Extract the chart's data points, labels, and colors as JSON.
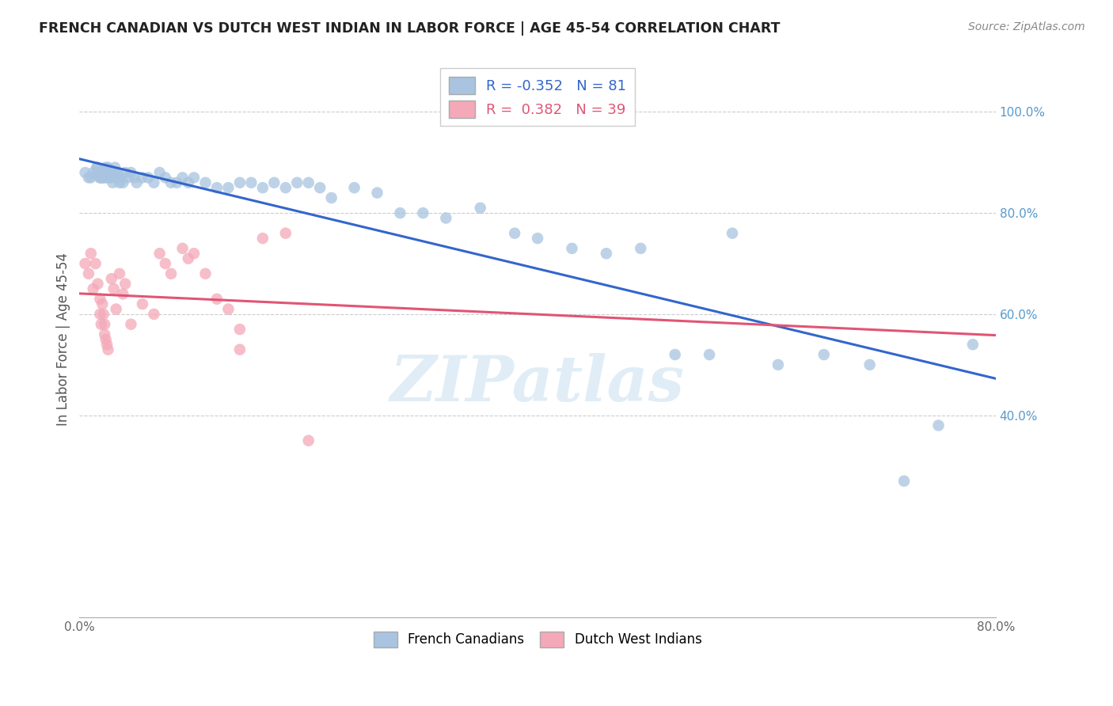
{
  "title": "FRENCH CANADIAN VS DUTCH WEST INDIAN IN LABOR FORCE | AGE 45-54 CORRELATION CHART",
  "source": "Source: ZipAtlas.com",
  "ylabel": "In Labor Force | Age 45-54",
  "xlim": [
    0.0,
    0.8
  ],
  "ylim": [
    0.0,
    1.1
  ],
  "blue_R": -0.352,
  "blue_N": 81,
  "pink_R": 0.382,
  "pink_N": 39,
  "legend_labels": [
    "French Canadians",
    "Dutch West Indians"
  ],
  "blue_color": "#a8c4e0",
  "pink_color": "#f4a8b8",
  "blue_line_color": "#3366cc",
  "pink_line_color": "#e05575",
  "watermark": "ZIPatlas",
  "blue_scatter_x": [
    0.005,
    0.008,
    0.01,
    0.012,
    0.015,
    0.015,
    0.016,
    0.017,
    0.018,
    0.018,
    0.019,
    0.019,
    0.02,
    0.02,
    0.021,
    0.021,
    0.022,
    0.022,
    0.023,
    0.024,
    0.024,
    0.025,
    0.025,
    0.026,
    0.027,
    0.028,
    0.029,
    0.03,
    0.031,
    0.032,
    0.033,
    0.035,
    0.036,
    0.038,
    0.04,
    0.042,
    0.045,
    0.048,
    0.05,
    0.055,
    0.06,
    0.065,
    0.07,
    0.075,
    0.08,
    0.085,
    0.09,
    0.095,
    0.1,
    0.11,
    0.12,
    0.13,
    0.14,
    0.15,
    0.16,
    0.17,
    0.18,
    0.19,
    0.2,
    0.21,
    0.22,
    0.24,
    0.26,
    0.28,
    0.3,
    0.32,
    0.35,
    0.38,
    0.4,
    0.43,
    0.46,
    0.49,
    0.52,
    0.55,
    0.57,
    0.61,
    0.65,
    0.69,
    0.72,
    0.75,
    0.78
  ],
  "blue_scatter_y": [
    0.88,
    0.87,
    0.87,
    0.88,
    0.89,
    0.88,
    0.89,
    0.88,
    0.87,
    0.87,
    0.88,
    0.87,
    0.88,
    0.87,
    0.88,
    0.87,
    0.88,
    0.87,
    0.89,
    0.88,
    0.87,
    0.89,
    0.88,
    0.87,
    0.88,
    0.87,
    0.86,
    0.88,
    0.89,
    0.87,
    0.88,
    0.86,
    0.87,
    0.86,
    0.88,
    0.87,
    0.88,
    0.87,
    0.86,
    0.87,
    0.87,
    0.86,
    0.88,
    0.87,
    0.86,
    0.86,
    0.87,
    0.86,
    0.87,
    0.86,
    0.85,
    0.85,
    0.86,
    0.86,
    0.85,
    0.86,
    0.85,
    0.86,
    0.86,
    0.85,
    0.83,
    0.85,
    0.84,
    0.8,
    0.8,
    0.79,
    0.81,
    0.76,
    0.75,
    0.73,
    0.72,
    0.73,
    0.52,
    0.52,
    0.76,
    0.5,
    0.52,
    0.5,
    0.27,
    0.38,
    0.54
  ],
  "pink_scatter_x": [
    0.005,
    0.008,
    0.01,
    0.012,
    0.014,
    0.016,
    0.018,
    0.018,
    0.019,
    0.02,
    0.021,
    0.022,
    0.022,
    0.023,
    0.024,
    0.025,
    0.028,
    0.03,
    0.032,
    0.035,
    0.038,
    0.04,
    0.045,
    0.055,
    0.065,
    0.07,
    0.075,
    0.08,
    0.09,
    0.095,
    0.1,
    0.11,
    0.12,
    0.13,
    0.14,
    0.14,
    0.16,
    0.18,
    0.2
  ],
  "pink_scatter_y": [
    0.7,
    0.68,
    0.72,
    0.65,
    0.7,
    0.66,
    0.63,
    0.6,
    0.58,
    0.62,
    0.6,
    0.58,
    0.56,
    0.55,
    0.54,
    0.53,
    0.67,
    0.65,
    0.61,
    0.68,
    0.64,
    0.66,
    0.58,
    0.62,
    0.6,
    0.72,
    0.7,
    0.68,
    0.73,
    0.71,
    0.72,
    0.68,
    0.63,
    0.61,
    0.57,
    0.53,
    0.75,
    0.76,
    0.35
  ]
}
